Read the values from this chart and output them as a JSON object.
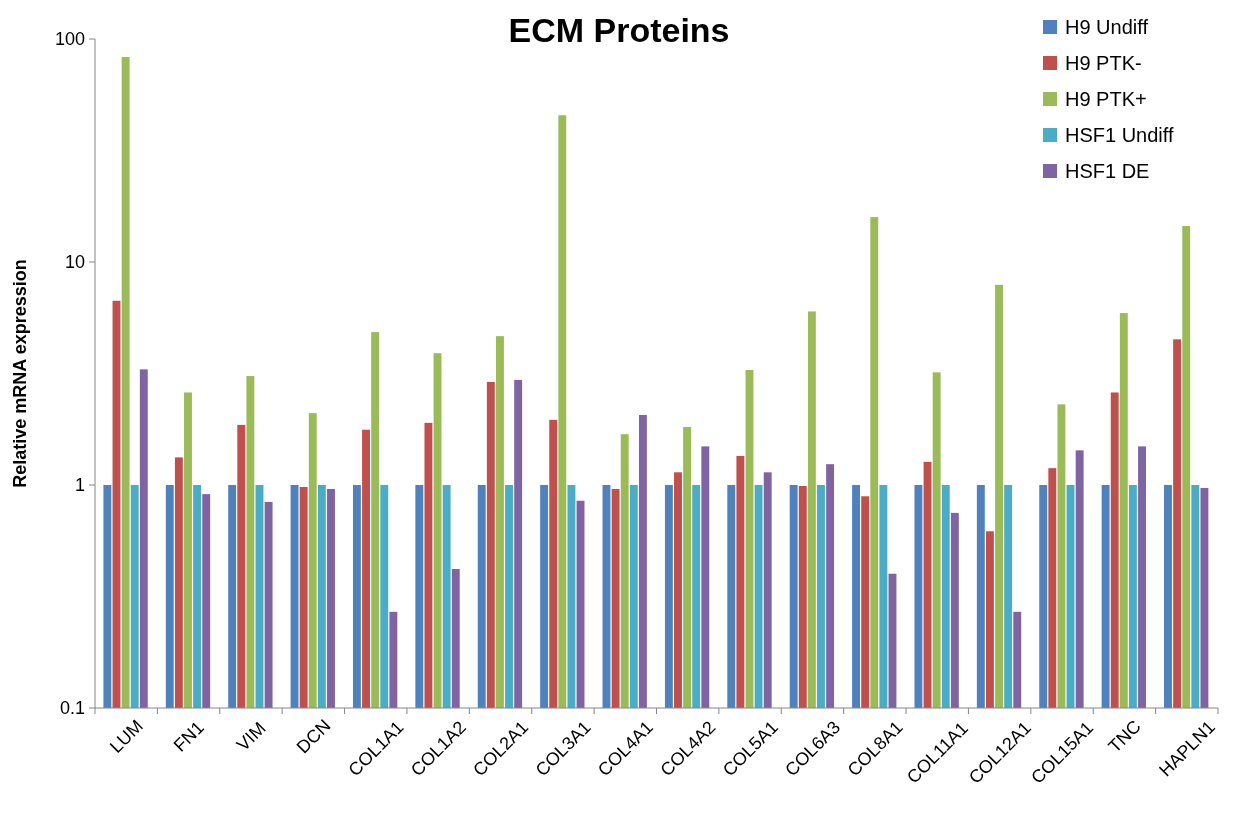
{
  "chart_data": {
    "type": "bar",
    "title": "ECM Proteins",
    "ylabel": "Relative mRNA expression",
    "log": true,
    "legend": "top right",
    "grid": false,
    "categories": [
      "LUM",
      "FN1",
      "VIM",
      "DCN",
      "COL1A1",
      "COL1A2",
      "COL2A1",
      "COL3A1",
      "COL4A1",
      "COL4A2",
      "COL5A1",
      "COL6A3",
      "COL8A1",
      "COL11A1",
      "COL12A1",
      "COL15A1",
      "TNC",
      "HAPLN1"
    ],
    "ylim": [
      0.1,
      100
    ],
    "yticks": [
      0.1,
      1,
      10,
      100
    ],
    "series": [
      {
        "name": "H9 Undiff",
        "color": "#4f81bd",
        "values": [
          1,
          1,
          1,
          1,
          1,
          1,
          1,
          1,
          1,
          1,
          1,
          1,
          1,
          1,
          1,
          1,
          1,
          1
        ]
      },
      {
        "name": "H9 PTK-",
        "color": "#c0504d",
        "values": [
          6.7,
          1.33,
          1.86,
          0.98,
          1.77,
          1.9,
          2.9,
          1.96,
          0.96,
          1.14,
          1.35,
          0.99,
          0.89,
          1.27,
          0.62,
          1.19,
          2.6,
          4.5
        ]
      },
      {
        "name": "H9 PTK+",
        "color": "#9bbb59",
        "values": [
          83,
          2.6,
          3.08,
          2.1,
          4.85,
          3.9,
          4.65,
          45.5,
          1.69,
          1.82,
          3.28,
          6,
          15.9,
          3.2,
          7.9,
          2.3,
          5.9,
          14.5
        ]
      },
      {
        "name": "HSF1 Undiff",
        "color": "#4bacc6",
        "values": [
          1,
          1,
          1,
          1,
          1,
          1,
          1,
          1,
          1,
          1,
          1,
          1,
          1,
          1,
          1,
          1,
          1,
          1
        ]
      },
      {
        "name": "HSF1 DE",
        "color": "#8064a2",
        "values": [
          3.3,
          0.91,
          0.84,
          0.96,
          0.27,
          0.42,
          2.96,
          0.85,
          2.06,
          1.49,
          1.14,
          1.24,
          0.4,
          0.75,
          0.27,
          1.43,
          1.49,
          0.97
        ]
      }
    ]
  }
}
